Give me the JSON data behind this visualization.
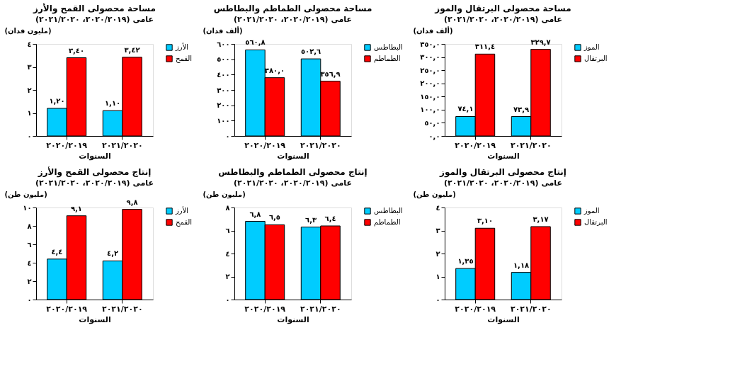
{
  "chart_data": [
    {
      "type": "bar",
      "title": "مساحة محصولى القمح والأرز",
      "subtitle": "عامى (٢٠٢٠/٢٠١٩، ٢٠٢١/٢٠٢٠)",
      "ylabel": "(مليون فدان)",
      "xlabel": "السنوات",
      "categories": [
        "٢٠٢٠/٢٠١٩",
        "٢٠٢١/٢٠٢٠"
      ],
      "series": [
        {
          "name": "الأرز",
          "color": "#00ccff",
          "values": [
            1.2,
            1.1
          ],
          "value_labels": [
            "١,٢٠",
            "١,١٠"
          ]
        },
        {
          "name": "القمح",
          "color": "#ff0000",
          "values": [
            3.4,
            3.42
          ],
          "value_labels": [
            "٣,٤٠",
            "٣,٤٢"
          ]
        }
      ],
      "ylim": [
        0,
        4
      ],
      "yticks": [
        {
          "value": 0,
          "label": "٠"
        },
        {
          "value": 1,
          "label": "١"
        },
        {
          "value": 2,
          "label": "٢"
        },
        {
          "value": 3,
          "label": "٣"
        },
        {
          "value": 4,
          "label": "٤"
        }
      ],
      "grid": false,
      "legend": "right"
    },
    {
      "type": "bar",
      "title": "مساحة محصولى الطماطم والبطاطس",
      "subtitle": "عامى (٢٠٢٠/٢٠١٩، ٢٠٢١/٢٠٢٠)",
      "ylabel": "(ألف فدان)",
      "xlabel": "السنوات",
      "categories": [
        "٢٠٢٠/٢٠١٩",
        "٢٠٢١/٢٠٢٠"
      ],
      "series": [
        {
          "name": "البطاطس",
          "color": "#00ccff",
          "values": [
            560.8,
            502.6
          ],
          "value_labels": [
            "٥٦٠,٨",
            "٥٠٢,٦"
          ]
        },
        {
          "name": "الطماطم",
          "color": "#ff0000",
          "values": [
            380.0,
            356.9
          ],
          "value_labels": [
            "٣٨٠,٠",
            "٣٥٦,٩"
          ]
        }
      ],
      "ylim": [
        0,
        600
      ],
      "yticks": [
        {
          "value": 0,
          "label": "٠"
        },
        {
          "value": 100,
          "label": "١٠٠"
        },
        {
          "value": 200,
          "label": "٢٠٠"
        },
        {
          "value": 300,
          "label": "٣٠٠"
        },
        {
          "value": 400,
          "label": "٤٠٠"
        },
        {
          "value": 500,
          "label": "٥٠٠"
        },
        {
          "value": 600,
          "label": "٦٠٠"
        }
      ],
      "grid": false,
      "legend": "right"
    },
    {
      "type": "bar",
      "title": "مساحة محصولى البرتقال والموز",
      "subtitle": "عامى (٢٠٢٠/٢٠١٩، ٢٠٢١/٢٠٢٠)",
      "ylabel": "(ألف فدان)",
      "xlabel": "السنوات",
      "categories": [
        "٢٠٢٠/٢٠١٩",
        "٢٠٢١/٢٠٢٠"
      ],
      "series": [
        {
          "name": "الموز",
          "color": "#00ccff",
          "values": [
            74.1,
            73.9
          ],
          "value_labels": [
            "٧٤,١",
            "٧٣,٩"
          ]
        },
        {
          "name": "البرتقال",
          "color": "#ff0000",
          "values": [
            311.4,
            329.7
          ],
          "value_labels": [
            "٣١١,٤",
            "٣٢٩,٧"
          ]
        }
      ],
      "ylim": [
        0,
        350
      ],
      "yticks": [
        {
          "value": 0,
          "label": "٠,٠"
        },
        {
          "value": 50,
          "label": "٥٠,٠"
        },
        {
          "value": 100,
          "label": "١٠٠,٠"
        },
        {
          "value": 150,
          "label": "١٥٠,٠"
        },
        {
          "value": 200,
          "label": "٢٠٠,٠"
        },
        {
          "value": 250,
          "label": "٢٥٠,٠"
        },
        {
          "value": 300,
          "label": "٣٠٠,٠"
        },
        {
          "value": 350,
          "label": "٣٥٠,٠"
        }
      ],
      "grid": false,
      "legend": "right"
    },
    {
      "type": "bar",
      "title": "إنتاج محصولى القمح والأرز",
      "subtitle": "عامى (٢٠٢٠/٢٠١٩، ٢٠٢١/٢٠٢٠)",
      "ylabel": "(مليون طن)",
      "xlabel": "السنوات",
      "categories": [
        "٢٠٢٠/٢٠١٩",
        "٢٠٢١/٢٠٢٠"
      ],
      "series": [
        {
          "name": "الأرز",
          "color": "#00ccff",
          "values": [
            4.4,
            4.2
          ],
          "value_labels": [
            "٤,٤",
            "٤,٢"
          ]
        },
        {
          "name": "القمح",
          "color": "#ff0000",
          "values": [
            9.1,
            9.8
          ],
          "value_labels": [
            "٩,١",
            "٩,٨"
          ]
        }
      ],
      "ylim": [
        0,
        10
      ],
      "yticks": [
        {
          "value": 0,
          "label": "٠"
        },
        {
          "value": 2,
          "label": "٢"
        },
        {
          "value": 4,
          "label": "٤"
        },
        {
          "value": 6,
          "label": "٦"
        },
        {
          "value": 8,
          "label": "٨"
        },
        {
          "value": 10,
          "label": "١٠"
        }
      ],
      "grid": false,
      "legend": "right"
    },
    {
      "type": "bar",
      "title": "إنتاج محصولى الطماطم والبطاطس",
      "subtitle": "عامى (٢٠٢٠/٢٠١٩، ٢٠٢١/٢٠٢٠)",
      "ylabel": "(مليون طن)",
      "xlabel": "السنوات",
      "categories": [
        "٢٠٢٠/٢٠١٩",
        "٢٠٢١/٢٠٢٠"
      ],
      "series": [
        {
          "name": "البطاطس",
          "color": "#00ccff",
          "values": [
            6.8,
            6.3
          ],
          "value_labels": [
            "٦,٨",
            "٦,٣"
          ]
        },
        {
          "name": "الطماطم",
          "color": "#ff0000",
          "values": [
            6.5,
            6.4
          ],
          "value_labels": [
            "٦,٥",
            "٦,٤"
          ]
        }
      ],
      "ylim": [
        0,
        8
      ],
      "yticks": [
        {
          "value": 0,
          "label": "٠"
        },
        {
          "value": 2,
          "label": "٢"
        },
        {
          "value": 4,
          "label": "٤"
        },
        {
          "value": 6,
          "label": "٦"
        },
        {
          "value": 8,
          "label": "٨"
        }
      ],
      "grid": false,
      "legend": "right"
    },
    {
      "type": "bar",
      "title": "إنتاج محصولى البرتقال والموز",
      "subtitle": "عامى (٢٠٢٠/٢٠١٩، ٢٠٢١/٢٠٢٠)",
      "ylabel": "(مليون طن)",
      "xlabel": "السنوات",
      "categories": [
        "٢٠٢٠/٢٠١٩",
        "٢٠٢١/٢٠٢٠"
      ],
      "series": [
        {
          "name": "الموز",
          "color": "#00ccff",
          "values": [
            1.35,
            1.18
          ],
          "value_labels": [
            "١,٣٥",
            "١,١٨"
          ]
        },
        {
          "name": "البرتقال",
          "color": "#ff0000",
          "values": [
            3.1,
            3.17
          ],
          "value_labels": [
            "٣,١٠",
            "٣,١٧"
          ]
        }
      ],
      "ylim": [
        0,
        4
      ],
      "yticks": [
        {
          "value": 0,
          "label": "٠"
        },
        {
          "value": 1,
          "label": "١"
        },
        {
          "value": 2,
          "label": "٢"
        },
        {
          "value": 3,
          "label": "٣"
        },
        {
          "value": 4,
          "label": "٤"
        }
      ],
      "grid": false,
      "legend": "right"
    }
  ]
}
